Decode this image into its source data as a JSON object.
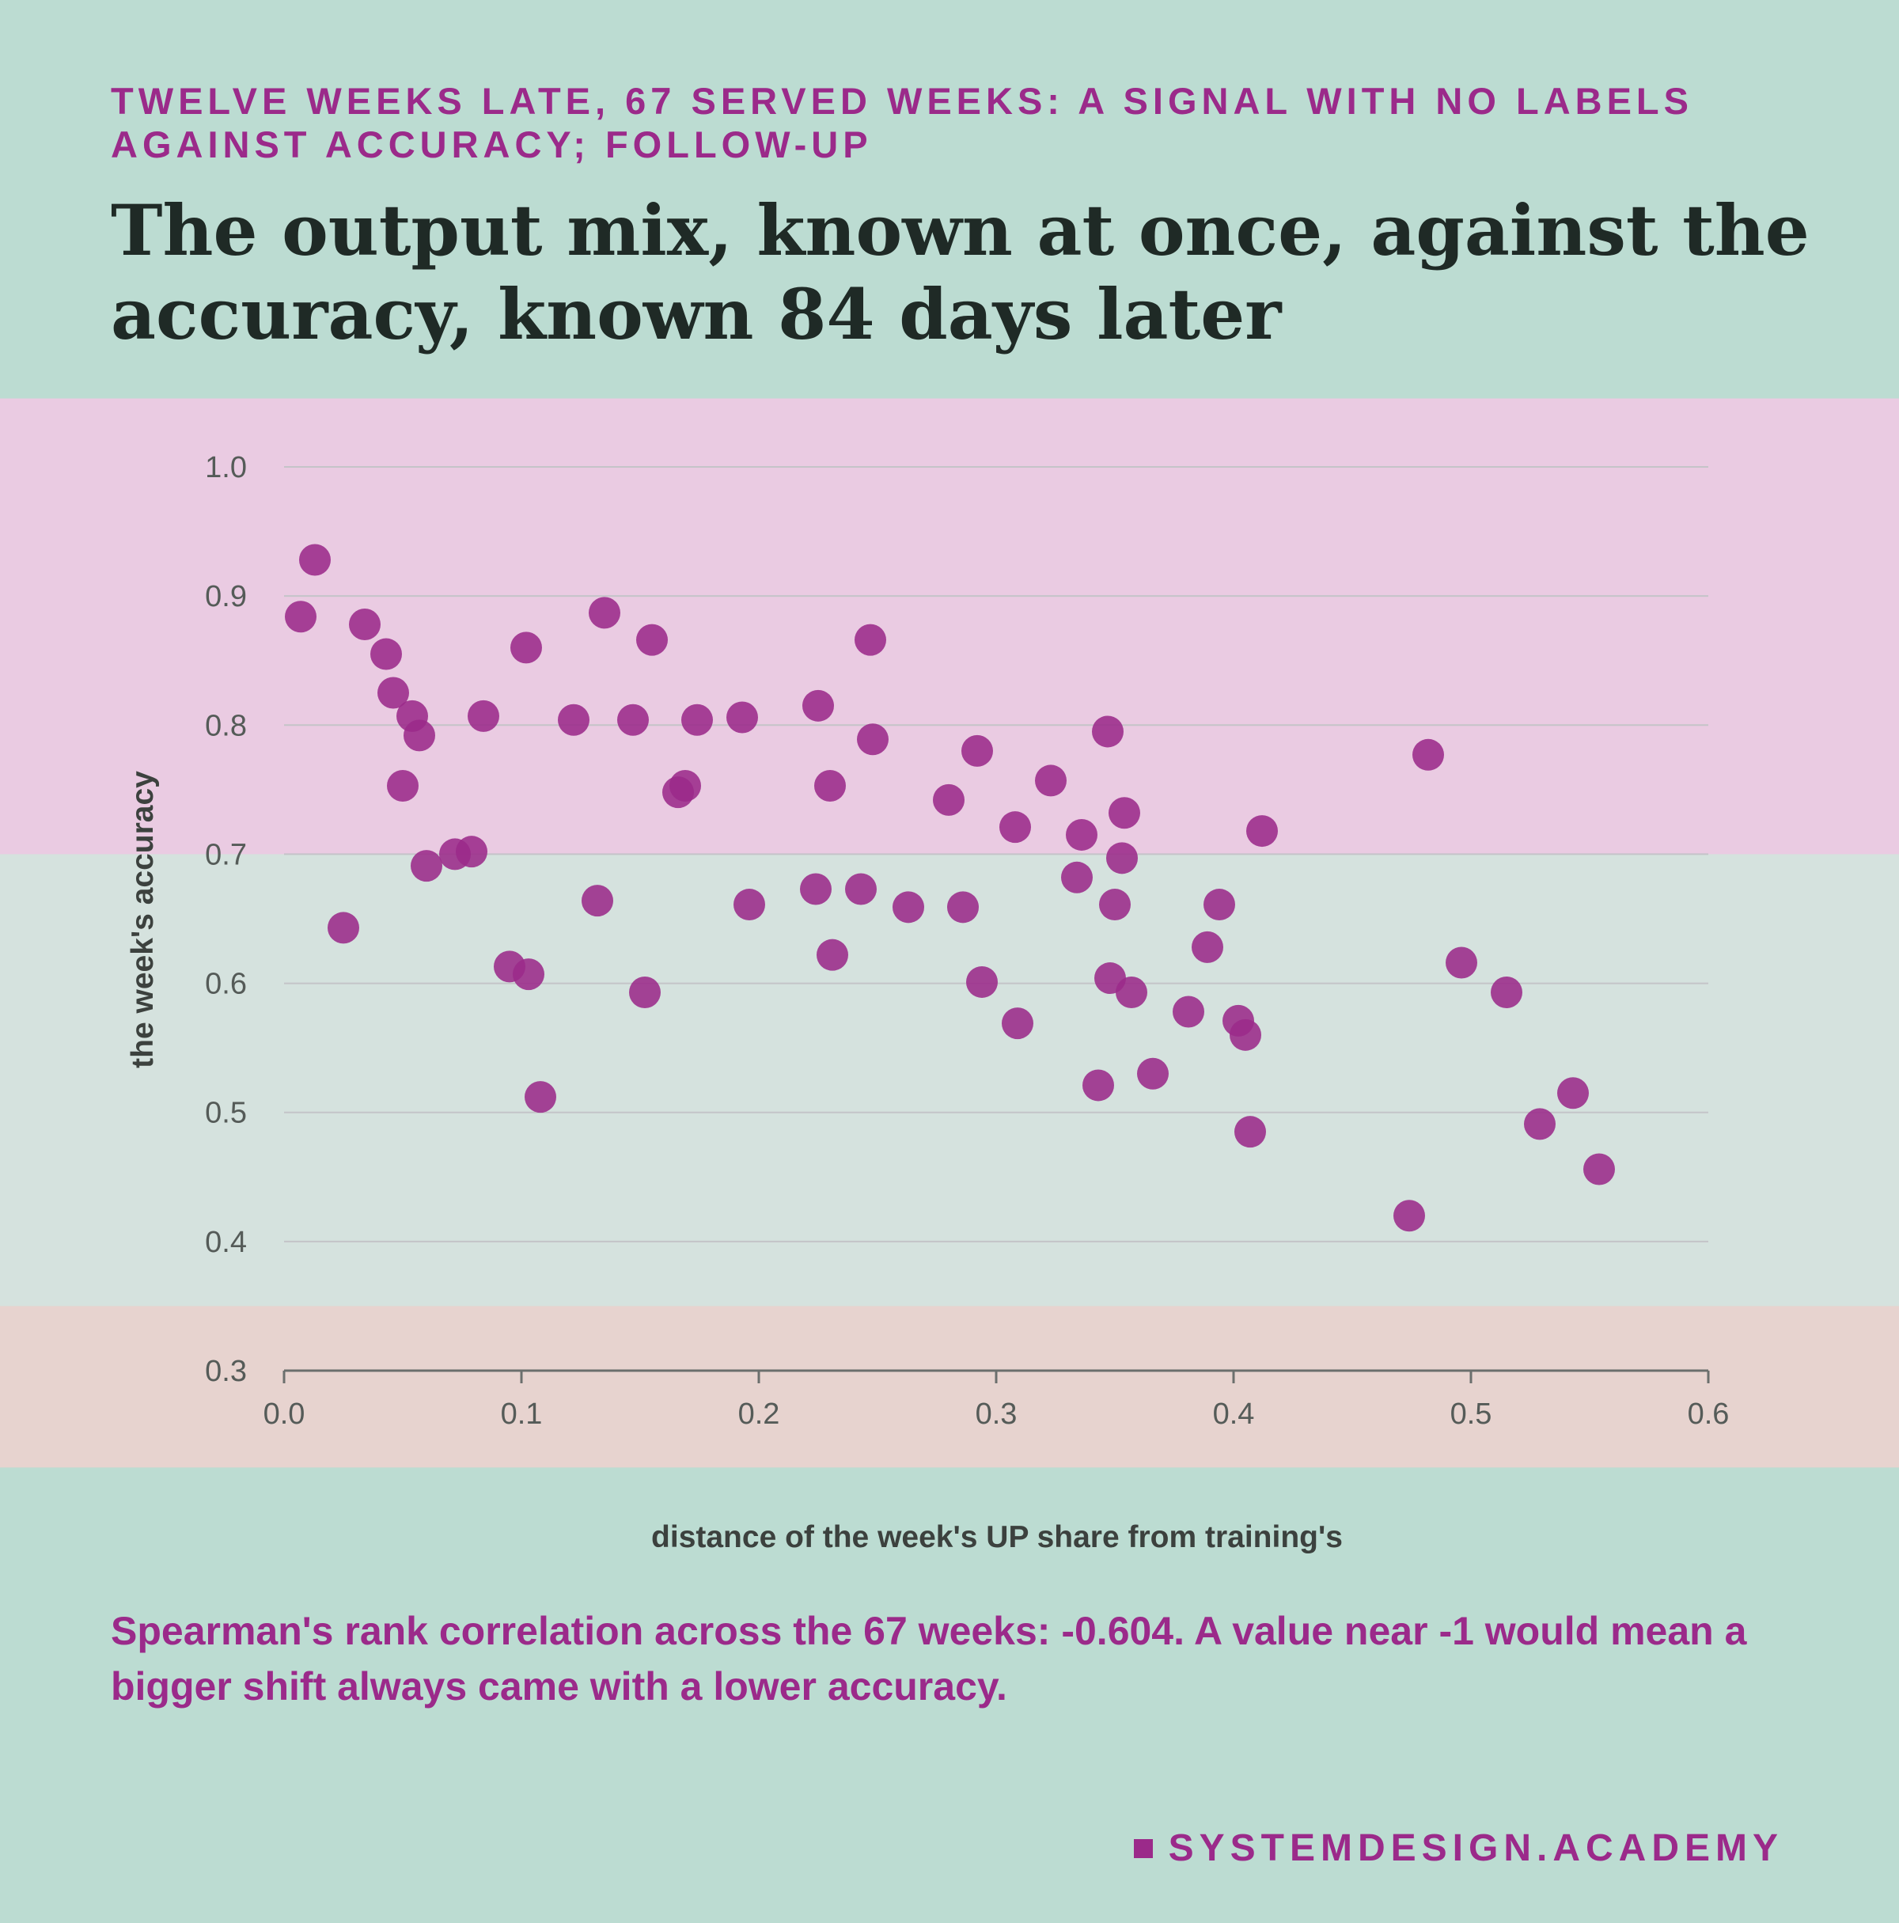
{
  "kicker": "TWELVE WEEKS LATE, 67 SERVED WEEKS: A SIGNAL WITH NO LABELS AGAINST ACCURACY; FOLLOW-UP",
  "title": "The output mix, known at once, against the accuracy, known 84 days later",
  "caption": "Spearman's rank correlation across the 67 weeks: -0.604. A value near -1 would mean a bigger shift always came with a lower accuracy.",
  "brand": "SYSTEMDESIGN.ACADEMY",
  "colors": {
    "background": "#bcdcd2",
    "band_high": "#eacbe2",
    "band_mid": "#d5e2de",
    "band_low": "#e7d3cf",
    "point": "#9b2a8a",
    "kicker": "#9b2a8a",
    "title": "#1f2a26"
  },
  "chart_data": {
    "type": "scatter",
    "xlabel": "distance of the week's UP share from training's",
    "ylabel": "the week's accuracy",
    "xlim": [
      0,
      0.6
    ],
    "ylim": [
      0.3,
      1.0
    ],
    "x_ticks": [
      "0.0",
      "0.1",
      "0.2",
      "0.3",
      "0.4",
      "0.5",
      "0.6"
    ],
    "y_ticks": [
      "1.0",
      "0.9",
      "0.8",
      "0.7",
      "0.6",
      "0.5",
      "0.4",
      "0.3"
    ],
    "grid": true,
    "bands": [
      {
        "from": 0.7,
        "to": 1.053,
        "color": "#eacbe2"
      },
      {
        "from": 0.35,
        "to": 0.7,
        "color": "#d5e2de"
      },
      {
        "from": 0.225,
        "to": 0.35,
        "color": "#e7d3cf"
      }
    ],
    "points": [
      {
        "x": 0.007,
        "y": 0.884
      },
      {
        "x": 0.013,
        "y": 0.928
      },
      {
        "x": 0.025,
        "y": 0.643
      },
      {
        "x": 0.034,
        "y": 0.878
      },
      {
        "x": 0.043,
        "y": 0.855
      },
      {
        "x": 0.046,
        "y": 0.825
      },
      {
        "x": 0.05,
        "y": 0.753
      },
      {
        "x": 0.054,
        "y": 0.807
      },
      {
        "x": 0.057,
        "y": 0.792
      },
      {
        "x": 0.06,
        "y": 0.691
      },
      {
        "x": 0.072,
        "y": 0.7
      },
      {
        "x": 0.079,
        "y": 0.702
      },
      {
        "x": 0.084,
        "y": 0.807
      },
      {
        "x": 0.095,
        "y": 0.613
      },
      {
        "x": 0.102,
        "y": 0.86
      },
      {
        "x": 0.103,
        "y": 0.607
      },
      {
        "x": 0.108,
        "y": 0.512
      },
      {
        "x": 0.122,
        "y": 0.804
      },
      {
        "x": 0.132,
        "y": 0.664
      },
      {
        "x": 0.135,
        "y": 0.887
      },
      {
        "x": 0.147,
        "y": 0.804
      },
      {
        "x": 0.152,
        "y": 0.593
      },
      {
        "x": 0.155,
        "y": 0.866
      },
      {
        "x": 0.166,
        "y": 0.748
      },
      {
        "x": 0.169,
        "y": 0.753
      },
      {
        "x": 0.174,
        "y": 0.804
      },
      {
        "x": 0.193,
        "y": 0.806
      },
      {
        "x": 0.196,
        "y": 0.661
      },
      {
        "x": 0.224,
        "y": 0.673
      },
      {
        "x": 0.225,
        "y": 0.815
      },
      {
        "x": 0.23,
        "y": 0.753
      },
      {
        "x": 0.231,
        "y": 0.622
      },
      {
        "x": 0.243,
        "y": 0.673
      },
      {
        "x": 0.247,
        "y": 0.866
      },
      {
        "x": 0.248,
        "y": 0.789
      },
      {
        "x": 0.263,
        "y": 0.659
      },
      {
        "x": 0.28,
        "y": 0.742
      },
      {
        "x": 0.286,
        "y": 0.659
      },
      {
        "x": 0.292,
        "y": 0.78
      },
      {
        "x": 0.294,
        "y": 0.601
      },
      {
        "x": 0.308,
        "y": 0.721
      },
      {
        "x": 0.309,
        "y": 0.569
      },
      {
        "x": 0.323,
        "y": 0.757
      },
      {
        "x": 0.334,
        "y": 0.682
      },
      {
        "x": 0.336,
        "y": 0.715
      },
      {
        "x": 0.343,
        "y": 0.521
      },
      {
        "x": 0.347,
        "y": 0.795
      },
      {
        "x": 0.348,
        "y": 0.604
      },
      {
        "x": 0.35,
        "y": 0.661
      },
      {
        "x": 0.353,
        "y": 0.697
      },
      {
        "x": 0.354,
        "y": 0.732
      },
      {
        "x": 0.357,
        "y": 0.593
      },
      {
        "x": 0.366,
        "y": 0.53
      },
      {
        "x": 0.381,
        "y": 0.578
      },
      {
        "x": 0.389,
        "y": 0.628
      },
      {
        "x": 0.394,
        "y": 0.661
      },
      {
        "x": 0.402,
        "y": 0.571
      },
      {
        "x": 0.405,
        "y": 0.56
      },
      {
        "x": 0.407,
        "y": 0.485
      },
      {
        "x": 0.412,
        "y": 0.718
      },
      {
        "x": 0.474,
        "y": 0.42
      },
      {
        "x": 0.482,
        "y": 0.777
      },
      {
        "x": 0.496,
        "y": 0.616
      },
      {
        "x": 0.515,
        "y": 0.593
      },
      {
        "x": 0.529,
        "y": 0.491
      },
      {
        "x": 0.543,
        "y": 0.515
      },
      {
        "x": 0.554,
        "y": 0.456
      }
    ]
  }
}
